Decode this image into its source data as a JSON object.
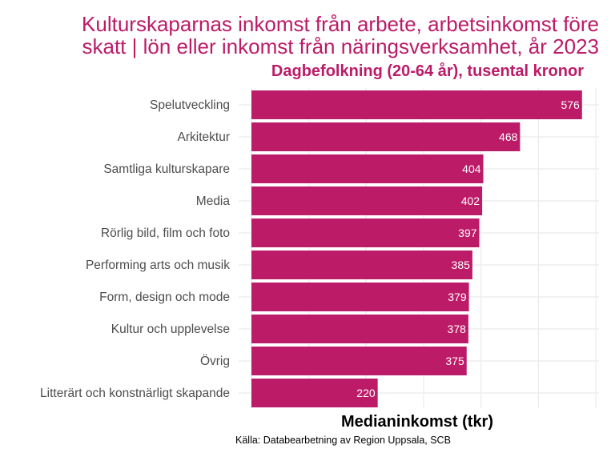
{
  "chart_data": {
    "type": "bar",
    "orientation": "horizontal",
    "title_lines": [
      "Kulturskaparnas inkomst från arbete, arbetsinkomst före",
      "skatt | lön eller inkomst från näringsverksamhet, år 2023"
    ],
    "subtitle": "Dagbefolkning (20-64 år), tusental kronor",
    "xlabel": "Medianinkomst (tkr)",
    "ylabel": "",
    "caption": "Källa: Databearbetning av Region Uppsala, SCB",
    "categories": [
      "Spelutveckling",
      "Arkitektur",
      "Samtliga kulturskapare",
      "Media",
      "Rörlig bild, film och foto",
      "Performing arts och musik",
      "Form, design och mode",
      "Kultur och upplevelse",
      "Övrig",
      "Litterärt och konstnärligt skapande"
    ],
    "values": [
      576,
      468,
      404,
      402,
      397,
      385,
      379,
      378,
      375,
      220
    ],
    "data_labels": [
      "576",
      "468",
      "404",
      "402",
      "397",
      "385",
      "379",
      "378",
      "375",
      "220"
    ],
    "xlim": [
      0,
      600
    ],
    "grid": true,
    "bar_color": "#BC1B68"
  }
}
